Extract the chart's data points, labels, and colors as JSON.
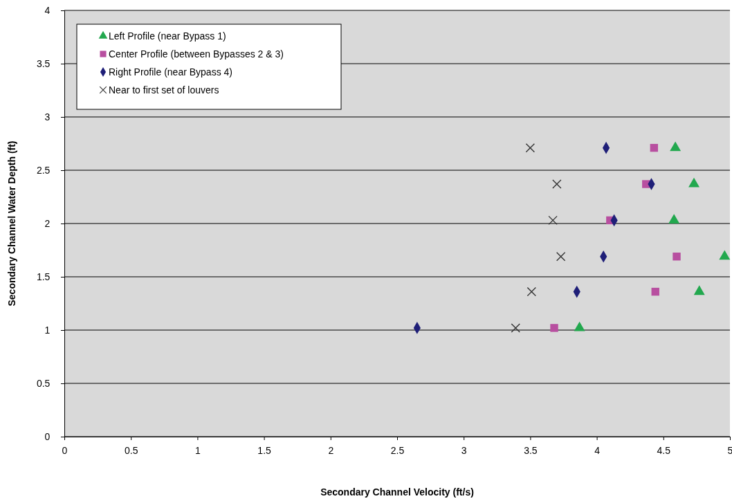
{
  "chart_data": {
    "type": "scatter",
    "xlabel": "Secondary Channel Velocity (ft/s)",
    "ylabel": "Secondary Channel Water Depth (ft)",
    "xlim": [
      0,
      5
    ],
    "ylim": [
      0,
      4
    ],
    "xticks": [
      0,
      0.5,
      1,
      1.5,
      2,
      2.5,
      3,
      3.5,
      4,
      4.5,
      5
    ],
    "yticks": [
      0,
      0.5,
      1,
      1.5,
      2,
      2.5,
      3,
      3.5,
      4
    ],
    "grid": "y",
    "legend": "top left",
    "series": [
      {
        "name": "Left Profile (near Bypass 1)",
        "color": "#22a84e",
        "marker": "triangle",
        "x": [
          4.59,
          4.73,
          4.58,
          4.96,
          4.77,
          3.87
        ],
        "values": [
          2.71,
          2.37,
          2.03,
          1.69,
          1.36,
          1.02
        ]
      },
      {
        "name": "Center Profile (between Bypasses 2 & 3)",
        "color": "#b84fa0",
        "marker": "square",
        "x": [
          4.43,
          4.37,
          4.1,
          4.6,
          4.44,
          3.68
        ],
        "values": [
          2.71,
          2.37,
          2.03,
          1.69,
          1.36,
          1.02
        ]
      },
      {
        "name": "Right Profile (near Bypass 4)",
        "color": "#1f1f78",
        "marker": "diamond",
        "x": [
          4.07,
          4.41,
          4.13,
          4.05,
          3.85,
          2.65
        ],
        "values": [
          2.71,
          2.37,
          2.03,
          1.69,
          1.36,
          1.02
        ]
      },
      {
        "name": "Near to first set of louvers",
        "color": "#333333",
        "marker": "cross",
        "x": [
          3.5,
          3.7,
          3.67,
          3.73,
          3.51,
          3.39
        ],
        "values": [
          2.71,
          2.37,
          2.03,
          1.69,
          1.36,
          1.02
        ]
      }
    ]
  }
}
